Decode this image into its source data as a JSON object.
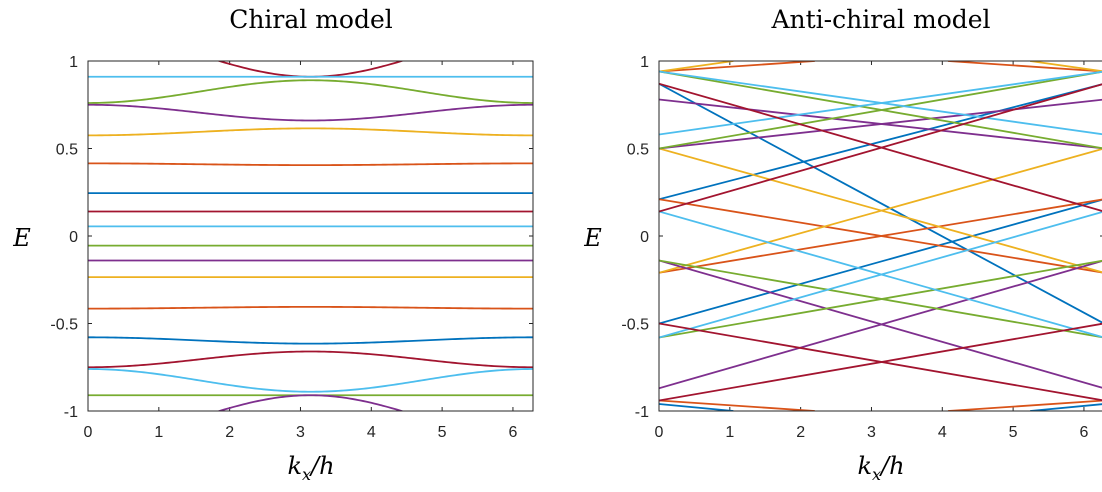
{
  "palette": [
    "#0072BD",
    "#D95319",
    "#EDB120",
    "#7E2F8E",
    "#77AC30",
    "#4DBEEE",
    "#A2142F"
  ],
  "chart_data": [
    {
      "type": "line",
      "title": "Chiral model",
      "xlabel": "k_x/h",
      "ylabel": "E",
      "xlim": [
        0,
        6.2832
      ],
      "ylim": [
        -1,
        1
      ],
      "xticks": [
        0,
        1,
        2,
        3,
        4,
        5,
        6
      ],
      "xtick_labels": [
        "0",
        "1",
        "2",
        "3",
        "4",
        "5",
        "6"
      ],
      "yticks": [
        1,
        0.5,
        0,
        -0.5,
        -1
      ],
      "ytick_labels": [
        "1",
        "0.5",
        "0",
        "-0.5",
        "-1"
      ],
      "grid": false,
      "series_shape": "cosine band E(k) = c + a·cos(k − π)",
      "series": [
        {
          "color": "#A2142F",
          "c": 1.035,
          "a": -0.125
        },
        {
          "color": "#4DBEEE",
          "c": 0.91,
          "a": 0
        },
        {
          "color": "#77AC30",
          "c": 0.825,
          "a": 0.065
        },
        {
          "color": "#7E2F8E",
          "c": 0.705,
          "a": -0.045
        },
        {
          "color": "#EDB120",
          "c": 0.595,
          "a": 0.02
        },
        {
          "color": "#D95319",
          "c": 0.41,
          "a": -0.005
        },
        {
          "color": "#0072BD",
          "c": 0.245,
          "a": 0
        },
        {
          "color": "#A2142F",
          "c": 0.14,
          "a": 0
        },
        {
          "color": "#4DBEEE",
          "c": 0.055,
          "a": 0
        },
        {
          "color": "#77AC30",
          "c": -0.055,
          "a": 0
        },
        {
          "color": "#7E2F8E",
          "c": -0.14,
          "a": 0
        },
        {
          "color": "#EDB120",
          "c": -0.235,
          "a": 0
        },
        {
          "color": "#D95319",
          "c": -0.41,
          "a": 0.005
        },
        {
          "color": "#0072BD",
          "c": -0.597,
          "a": -0.018
        },
        {
          "color": "#A2142F",
          "c": -0.705,
          "a": 0.045
        },
        {
          "color": "#4DBEEE",
          "c": -0.825,
          "a": -0.065
        },
        {
          "color": "#77AC30",
          "c": -0.91,
          "a": 0
        },
        {
          "color": "#7E2F8E",
          "c": -1.035,
          "a": 0.125
        }
      ]
    },
    {
      "type": "line",
      "title": "Anti-chiral model",
      "xlabel": "k_x/h",
      "ylabel": "E",
      "xlim": [
        0,
        6.2832
      ],
      "ylim": [
        -1,
        1
      ],
      "xticks": [
        0,
        1,
        2,
        3,
        4,
        5,
        6
      ],
      "xtick_labels": [
        "0",
        "1",
        "2",
        "3",
        "4",
        "5",
        "6"
      ],
      "yticks": [
        1,
        0.5,
        0,
        -0.5,
        -1
      ],
      "ytick_labels": [
        "1",
        "0.5",
        "0",
        "-0.5",
        "-1"
      ],
      "grid": false,
      "series_shape": "straight line segments [x0, y0, x1, y1]",
      "series": [
        {
          "color": "#0072BD",
          "segments": [
            [
              0,
              0.87,
              6.2832,
              -0.5
            ],
            [
              0,
              0.21,
              6.2832,
              0.87
            ],
            [
              0,
              -0.5,
              6.2832,
              0.21
            ],
            [
              0,
              -0.96,
              1.05,
              -1
            ],
            [
              5.24,
              -1,
              6.2832,
              -0.96
            ]
          ]
        },
        {
          "color": "#D95319",
          "segments": [
            [
              0,
              0.94,
              2.2,
              1
            ],
            [
              0,
              0.21,
              6.2832,
              -0.21
            ],
            [
              0,
              -0.21,
              6.2832,
              0.21
            ],
            [
              0,
              -0.94,
              2.2,
              -1
            ],
            [
              4.08,
              1,
              6.2832,
              0.94
            ],
            [
              4.08,
              -1,
              6.2832,
              -0.94
            ]
          ]
        },
        {
          "color": "#EDB120",
          "segments": [
            [
              0,
              0.94,
              1.05,
              1
            ],
            [
              0,
              0.5,
              6.2832,
              -0.21
            ],
            [
              0,
              -0.21,
              6.2832,
              0.5
            ],
            [
              5.24,
              1,
              6.2832,
              0.94
            ]
          ]
        },
        {
          "color": "#7E2F8E",
          "segments": [
            [
              0,
              0.78,
              6.2832,
              0.5
            ],
            [
              0,
              0.5,
              6.2832,
              0.78
            ],
            [
              0,
              -0.14,
              6.2832,
              -0.87
            ],
            [
              0,
              -0.87,
              6.2832,
              -0.14
            ]
          ]
        },
        {
          "color": "#77AC30",
          "segments": [
            [
              0,
              0.5,
              6.2832,
              0.94
            ],
            [
              0,
              0.94,
              6.2832,
              0.5
            ],
            [
              0,
              -0.14,
              6.2832,
              -0.58
            ],
            [
              0,
              -0.58,
              6.2832,
              -0.14
            ]
          ]
        },
        {
          "color": "#4DBEEE",
          "segments": [
            [
              0,
              0.58,
              6.2832,
              0.94
            ],
            [
              0,
              0.94,
              6.2832,
              0.58
            ],
            [
              0,
              0.14,
              6.2832,
              -0.58
            ],
            [
              0,
              -0.58,
              6.2832,
              0.14
            ]
          ]
        },
        {
          "color": "#A2142F",
          "segments": [
            [
              0,
              0.87,
              6.2832,
              0.14
            ],
            [
              0,
              0.14,
              6.2832,
              0.87
            ],
            [
              0,
              -0.5,
              6.2832,
              -0.94
            ],
            [
              0,
              -0.94,
              6.2832,
              -0.5
            ]
          ]
        }
      ]
    }
  ]
}
